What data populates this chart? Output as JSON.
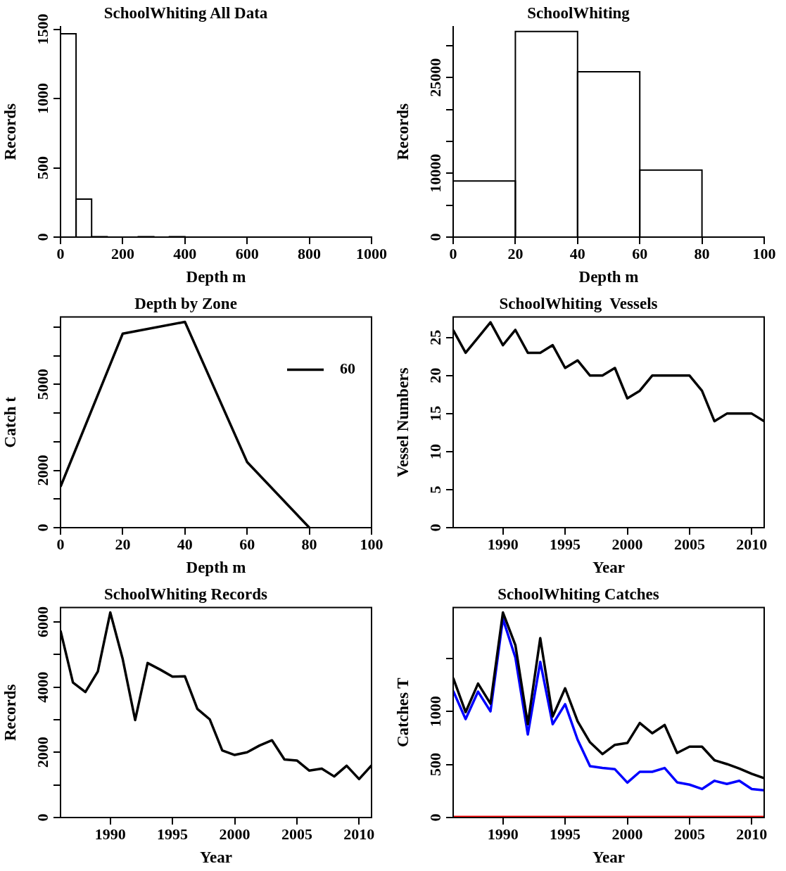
{
  "chart_data": [
    {
      "type": "histogram",
      "title": "SchoolWhiting All Data",
      "xlabel": "Depth m",
      "ylabel": "Records",
      "bins": [
        0,
        50,
        100,
        150,
        200,
        250,
        300,
        350,
        400,
        450,
        500,
        550,
        600,
        650,
        700,
        750,
        800,
        850,
        900,
        950,
        1000
      ],
      "values": [
        1467,
        274,
        3,
        0,
        0,
        3,
        0,
        3,
        0,
        0,
        0,
        0,
        0,
        0,
        0,
        0,
        0,
        0,
        0,
        0
      ],
      "color": "#000000",
      "xlim": [
        0,
        1000
      ],
      "xticks": [
        0,
        200,
        400,
        600,
        800,
        1000
      ],
      "ylim": [
        0,
        1520
      ],
      "yticks": [
        0,
        500,
        1000,
        1500
      ]
    },
    {
      "type": "histogram",
      "title": "SchoolWhiting",
      "xlabel": "Depth m",
      "ylabel": "Records",
      "bins": [
        0,
        20,
        40,
        60,
        80,
        100
      ],
      "values": [
        8800,
        32200,
        25900,
        10500,
        0
      ],
      "color": "#000000",
      "xlim": [
        0,
        100
      ],
      "xticks": [
        0,
        20,
        40,
        60,
        80,
        100
      ],
      "ylim": [
        0,
        33000
      ],
      "yticks": [
        0,
        {
          "value": 5000,
          "label": null
        },
        {
          "value": 10000,
          "label": "10000"
        },
        {
          "value": 15000,
          "label": null
        },
        {
          "value": 20000,
          "label": null
        },
        {
          "value": 25000,
          "label": "25000"
        },
        {
          "value": 30000,
          "label": null
        }
      ]
    },
    {
      "type": "line",
      "title": "Depth by Zone",
      "xlabel": "Depth m",
      "ylabel": "Catch t",
      "x": [
        0,
        20,
        40,
        60,
        80
      ],
      "series": [
        {
          "name": "60",
          "color": "#000000",
          "values": [
            1430,
            6770,
            7180,
            2290,
            0
          ]
        }
      ],
      "xlim": [
        0,
        100
      ],
      "xticks": [
        0,
        20,
        40,
        60,
        80,
        100
      ],
      "ylim": [
        0,
        7350
      ],
      "yticks": [
        0,
        {
          "value": 1000,
          "label": null
        },
        {
          "value": 2000,
          "label": "2000"
        },
        {
          "value": 3000,
          "label": null
        },
        {
          "value": 4000,
          "label": null
        },
        {
          "value": 5000,
          "label": "5000"
        },
        {
          "value": 6000,
          "label": null
        },
        {
          "value": 7000,
          "label": null
        }
      ],
      "legend": "top right"
    },
    {
      "type": "line",
      "title": "SchoolWhiting  Vessels",
      "xlabel": "Year",
      "ylabel": "Vessel Numbers",
      "x": [
        1986,
        1987,
        1988,
        1989,
        1990,
        1991,
        1992,
        1993,
        1994,
        1995,
        1996,
        1997,
        1998,
        1999,
        2000,
        2001,
        2002,
        2003,
        2004,
        2005,
        2006,
        2007,
        2008,
        2009,
        2010,
        2011
      ],
      "series": [
        {
          "color": "#000000",
          "values": [
            26,
            23,
            25,
            27,
            24,
            26,
            23,
            23,
            24,
            21,
            22,
            20,
            20,
            21,
            17,
            18,
            20,
            20,
            20,
            20,
            18,
            14,
            15,
            15,
            15,
            14
          ]
        }
      ],
      "xlim": [
        1986,
        2011
      ],
      "xticks": [
        1990,
        1995,
        2000,
        2005,
        2010
      ],
      "ylim": [
        0,
        27.7
      ],
      "yticks": [
        0,
        5,
        10,
        15,
        20,
        25
      ]
    },
    {
      "type": "line",
      "title": "SchoolWhiting Records",
      "xlabel": "Year",
      "ylabel": "Records",
      "x": [
        1986,
        1987,
        1988,
        1989,
        1990,
        1991,
        1992,
        1993,
        1994,
        1995,
        1996,
        1997,
        1998,
        1999,
        2000,
        2001,
        2002,
        2003,
        2004,
        2005,
        2006,
        2007,
        2008,
        2009,
        2010,
        2011
      ],
      "series": [
        {
          "color": "#000000",
          "values": [
            5730,
            4140,
            3850,
            4480,
            6290,
            4860,
            2990,
            4740,
            4540,
            4320,
            4330,
            3330,
            3010,
            2060,
            1920,
            2000,
            2210,
            2370,
            1780,
            1750,
            1440,
            1500,
            1260,
            1590,
            1180,
            1600
          ]
        }
      ],
      "xlim": [
        1986,
        2011
      ],
      "xticks": [
        1990,
        1995,
        2000,
        2005,
        2010
      ],
      "ylim": [
        0,
        6440
      ],
      "yticks": [
        0,
        {
          "value": 1000,
          "label": null
        },
        {
          "value": 2000,
          "label": "2000"
        },
        {
          "value": 3000,
          "label": null
        },
        {
          "value": 4000,
          "label": "4000"
        },
        {
          "value": 5000,
          "label": null
        },
        {
          "value": 6000,
          "label": "6000"
        }
      ]
    },
    {
      "type": "line",
      "title": "SchoolWhiting Catches",
      "xlabel": "Year",
      "ylabel": "Catches T",
      "x": [
        1986,
        1987,
        1988,
        1989,
        1990,
        1991,
        1992,
        1993,
        1994,
        1995,
        1996,
        1997,
        1998,
        1999,
        2000,
        2001,
        2002,
        2003,
        2004,
        2005,
        2006,
        2007,
        2008,
        2009,
        2010,
        2011
      ],
      "series": [
        {
          "color": "#000000",
          "values": [
            1315,
            993,
            1262,
            1073,
            1932,
            1625,
            879,
            1690,
            952,
            1218,
            908,
            709,
            598,
            685,
            702,
            891,
            794,
            872,
            608,
            668,
            668,
            540,
            504,
            462,
            412,
            370
          ]
        },
        {
          "color": "#0000ff",
          "values": [
            1194,
            927,
            1186,
            1000,
            1872,
            1508,
            782,
            1467,
            879,
            1068,
            734,
            484,
            467,
            455,
            329,
            431,
            431,
            467,
            332,
            310,
            269,
            346,
            317,
            346,
            269,
            257
          ]
        },
        {
          "color": "#ff0000",
          "values": [
            5,
            5,
            5,
            5,
            5,
            5,
            5,
            5,
            5,
            5,
            5,
            5,
            5,
            5,
            5,
            5,
            5,
            5,
            5,
            5,
            5,
            5,
            5,
            5,
            5,
            5
          ]
        }
      ],
      "xlim": [
        1986,
        2011
      ],
      "xticks": [
        1990,
        1995,
        2000,
        2005,
        2010
      ],
      "ylim": [
        0,
        1978
      ],
      "yticks": [
        0,
        500,
        1000,
        {
          "value": 1500,
          "label": null
        }
      ]
    }
  ]
}
